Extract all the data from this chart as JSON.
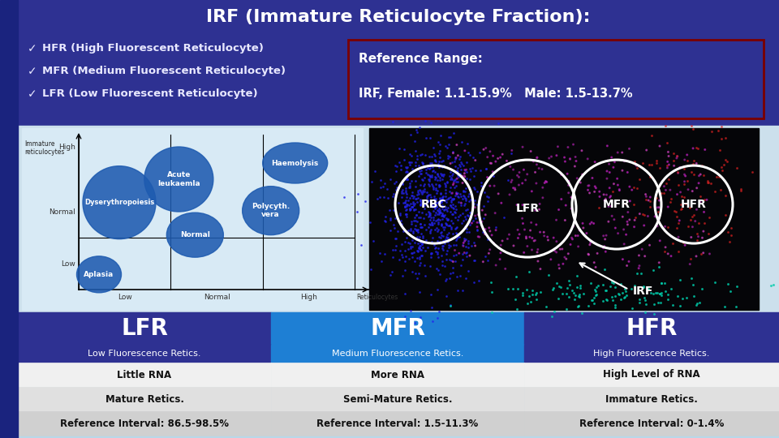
{
  "background_color": "#b8d8e8",
  "title": "IRF (Immature Reticulocyte Fraction):",
  "title_bg": "#2e3192",
  "bullet_items": [
    "HFR (High Fluorescent Reticulocyte)",
    "MFR (Medium Fluorescent Reticulocyte)",
    "LFR (Low Fluorescent Reticulocyte)"
  ],
  "ref_range_title": "Reference Range:",
  "ref_range_value": "IRF, Female: 1.1-15.9%   Male: 1.5-13.7%",
  "ref_range_border": "#7b0000",
  "table_headers": [
    "LFR",
    "MFR",
    "HFR"
  ],
  "table_header_bg": [
    "#2e3192",
    "#1e7fd4",
    "#2e3192"
  ],
  "table_sub_headers": [
    "Low Fluorescence Retics.",
    "Medium Fluorescence Retics.",
    "High Fluorescence Retics."
  ],
  "table_rows": [
    [
      "Little RNA",
      "More RNA",
      "High Level of RNA"
    ],
    [
      "Mature Retics.",
      "Semi-Mature Retics.",
      "Immature Retics."
    ],
    [
      "Reference Interval: 86.5-98.5%",
      "Reference Interval: 1.5-11.3%",
      "Reference Interval: 0-1.4%"
    ]
  ],
  "table_row_colors": [
    "#f0f0f0",
    "#e0e0e0",
    "#d0d0d0"
  ],
  "left_bar_color": "#1a237e",
  "left_bar_width": 22,
  "bullet_bg": "#2e3192",
  "mid_bg": "#cce0ec"
}
